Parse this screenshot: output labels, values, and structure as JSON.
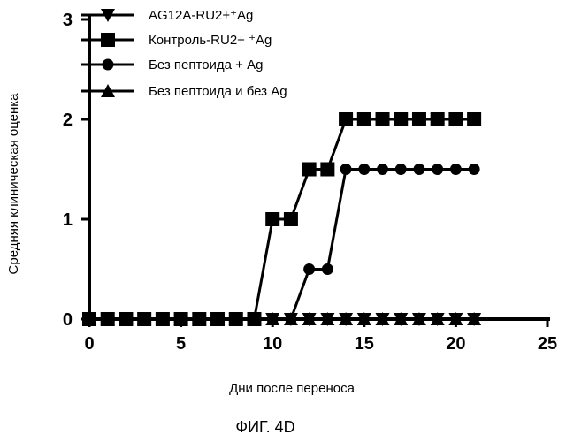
{
  "chart_data": {
    "type": "line",
    "title": "",
    "xlabel": "Дни после переноса",
    "ylabel": "Средняя клиническая оценка",
    "xlim": [
      0,
      25
    ],
    "ylim": [
      0,
      3
    ],
    "xticks": [
      0,
      5,
      10,
      15,
      20,
      25
    ],
    "yticks": [
      0,
      1,
      2,
      3
    ],
    "grid": false,
    "legend_position": "top-left",
    "series": [
      {
        "name": "AG12A-RU2+⁺Ag",
        "marker": "triangle-down",
        "points": [
          [
            0,
            0
          ],
          [
            1,
            0
          ],
          [
            2,
            0
          ],
          [
            3,
            0
          ],
          [
            4,
            0
          ],
          [
            5,
            0
          ],
          [
            6,
            0
          ],
          [
            7,
            0
          ],
          [
            8,
            0
          ],
          [
            9,
            0
          ],
          [
            10,
            0
          ],
          [
            11,
            0
          ],
          [
            12,
            0
          ],
          [
            13,
            0
          ],
          [
            14,
            0
          ],
          [
            15,
            0
          ],
          [
            16,
            0
          ],
          [
            17,
            0
          ],
          [
            18,
            0
          ],
          [
            19,
            0
          ],
          [
            20,
            0
          ],
          [
            21,
            0
          ]
        ]
      },
      {
        "name": "Контроль-RU2+ ⁺Ag",
        "marker": "square",
        "points": [
          [
            0,
            0
          ],
          [
            1,
            0
          ],
          [
            2,
            0
          ],
          [
            3,
            0
          ],
          [
            4,
            0
          ],
          [
            5,
            0
          ],
          [
            6,
            0
          ],
          [
            7,
            0
          ],
          [
            8,
            0
          ],
          [
            9,
            0
          ],
          [
            10,
            1
          ],
          [
            11,
            1
          ],
          [
            12,
            1.5
          ],
          [
            13,
            1.5
          ],
          [
            14,
            2
          ],
          [
            15,
            2
          ],
          [
            16,
            2
          ],
          [
            17,
            2
          ],
          [
            18,
            2
          ],
          [
            19,
            2
          ],
          [
            20,
            2
          ],
          [
            21,
            2
          ]
        ]
      },
      {
        "name": "Без пептоида + Ag",
        "marker": "circle",
        "points": [
          [
            0,
            0
          ],
          [
            1,
            0
          ],
          [
            2,
            0
          ],
          [
            3,
            0
          ],
          [
            4,
            0
          ],
          [
            5,
            0
          ],
          [
            6,
            0
          ],
          [
            7,
            0
          ],
          [
            8,
            0
          ],
          [
            9,
            0
          ],
          [
            10,
            0
          ],
          [
            11,
            0
          ],
          [
            12,
            0.5
          ],
          [
            13,
            0.5
          ],
          [
            14,
            1.5
          ],
          [
            15,
            1.5
          ],
          [
            16,
            1.5
          ],
          [
            17,
            1.5
          ],
          [
            18,
            1.5
          ],
          [
            19,
            1.5
          ],
          [
            20,
            1.5
          ],
          [
            21,
            1.5
          ]
        ]
      },
      {
        "name": "Без пептоида и без Ag",
        "marker": "triangle-up",
        "points": [
          [
            0,
            0
          ],
          [
            1,
            0
          ],
          [
            2,
            0
          ],
          [
            3,
            0
          ],
          [
            4,
            0
          ],
          [
            5,
            0
          ],
          [
            6,
            0
          ],
          [
            7,
            0
          ],
          [
            8,
            0
          ],
          [
            9,
            0
          ],
          [
            10,
            0
          ],
          [
            11,
            0
          ],
          [
            12,
            0
          ],
          [
            13,
            0
          ],
          [
            14,
            0
          ],
          [
            15,
            0
          ],
          [
            16,
            0
          ],
          [
            17,
            0
          ],
          [
            18,
            0
          ],
          [
            19,
            0
          ],
          [
            20,
            0
          ],
          [
            21,
            0
          ]
        ]
      }
    ]
  },
  "caption": "ФИГ. 4D",
  "colors": {
    "line": "#000000",
    "background": "#ffffff"
  }
}
